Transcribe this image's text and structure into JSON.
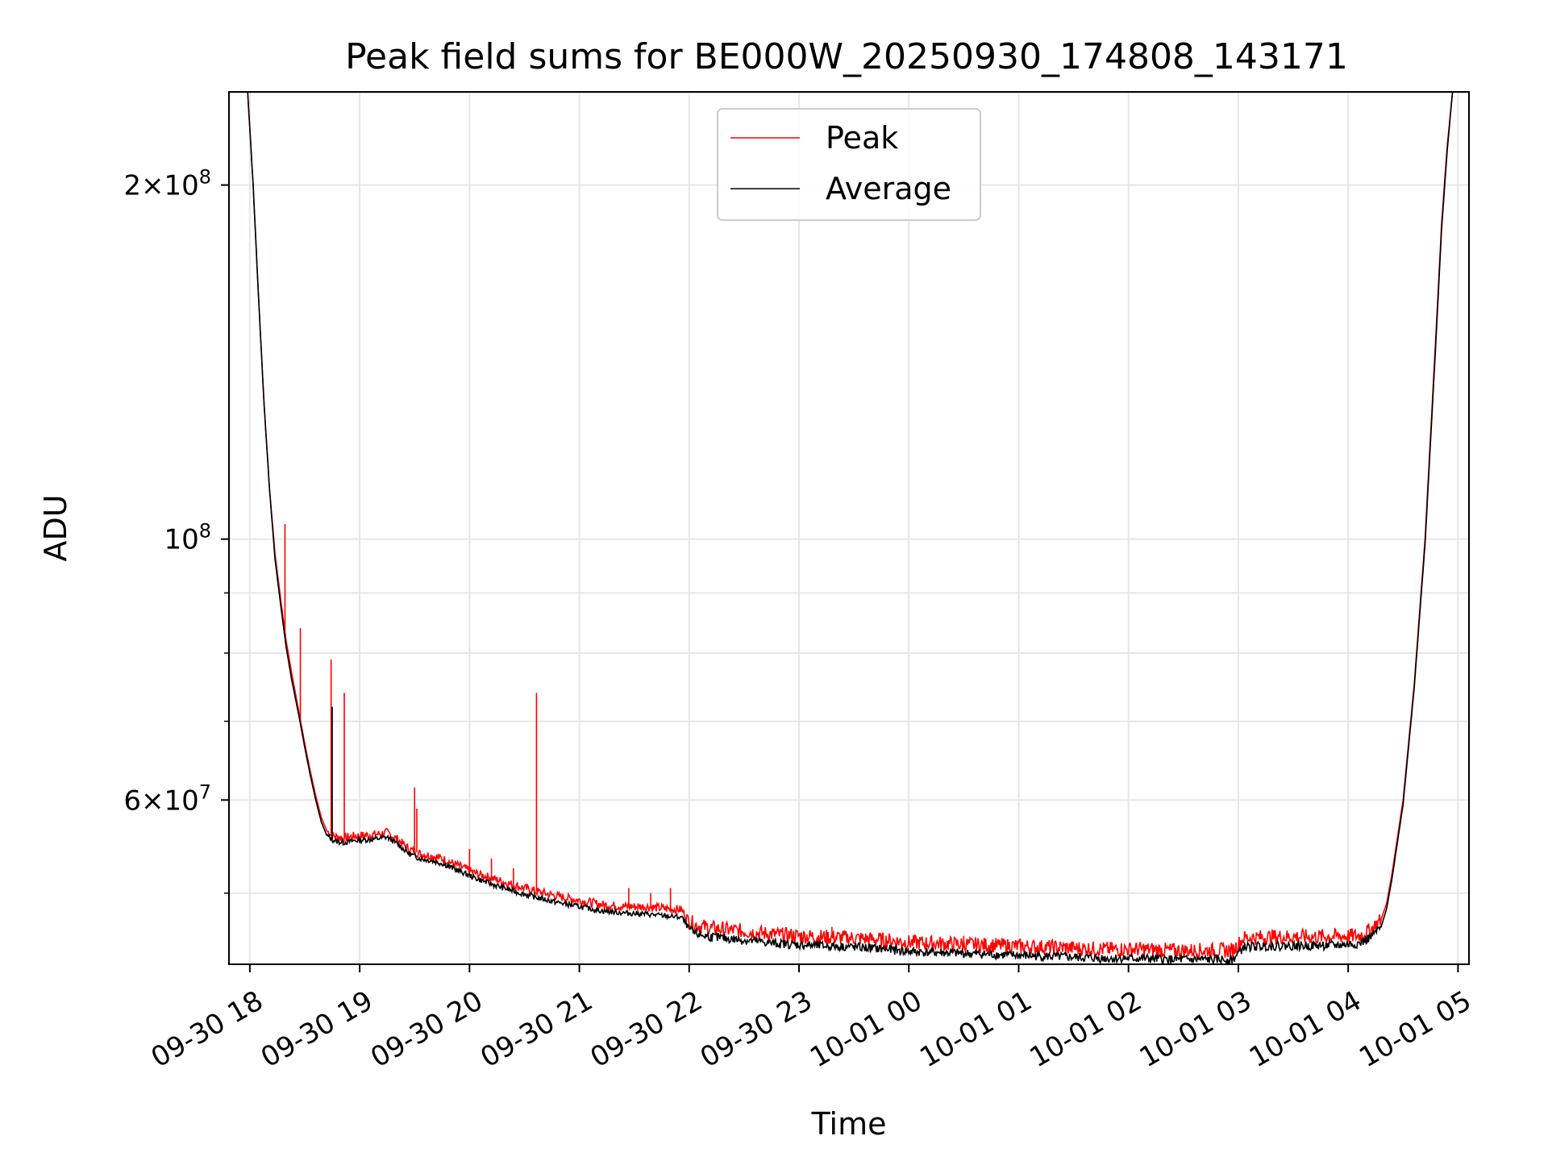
{
  "chart_data": {
    "type": "line",
    "title": "Peak field sums for BE000W_20250930_174808_143171",
    "xlabel": "Time",
    "ylabel": "ADU",
    "yscale": "log",
    "grid": true,
    "legend_position": "upper-center",
    "x_unit": "hours since 09-30 17:48",
    "x_range": [
      -0.19,
      11.1
    ],
    "ylim": [
      43500000,
      240000000
    ],
    "x_ticks": [
      {
        "label": "09-30 18",
        "value": 0
      },
      {
        "label": "09-30 19",
        "value": 1
      },
      {
        "label": "09-30 20",
        "value": 2
      },
      {
        "label": "09-30 21",
        "value": 3
      },
      {
        "label": "09-30 22",
        "value": 4
      },
      {
        "label": "09-30 23",
        "value": 5
      },
      {
        "label": "10-01 00",
        "value": 6
      },
      {
        "label": "10-01 01",
        "value": 7
      },
      {
        "label": "10-01 02",
        "value": 8
      },
      {
        "label": "10-01 03",
        "value": 9
      },
      {
        "label": "10-01 04",
        "value": 10
      },
      {
        "label": "10-01 05",
        "value": 11
      }
    ],
    "y_ticks_major": [
      {
        "value": 200000000,
        "mant": "2",
        "exp": "8"
      },
      {
        "value": 100000000,
        "mant": "",
        "exp": "8"
      },
      {
        "value": 60000000,
        "mant": "6",
        "exp": "7"
      }
    ],
    "y_ticks_minor": [
      50000000,
      70000000,
      80000000,
      90000000
    ],
    "series": [
      {
        "name": "Peak",
        "color": "#ff0000",
        "x": [
          -0.19,
          -0.02,
          0.03,
          0.08,
          0.13,
          0.18,
          0.23,
          0.28,
          0.33,
          0.38,
          0.45,
          0.5,
          0.55,
          0.6,
          0.65,
          0.7,
          0.75,
          0.8,
          0.85,
          0.9,
          0.95,
          1.05,
          1.15,
          1.25,
          1.35,
          1.45,
          1.55,
          1.65,
          1.75,
          1.85,
          1.95,
          2.05,
          2.2,
          2.4,
          2.6,
          2.8,
          3.0,
          3.2,
          3.4,
          3.6,
          3.8,
          3.93,
          4.0,
          4.05,
          4.2,
          4.5,
          4.8,
          5.0,
          5.2,
          5.5,
          5.8,
          6.0,
          6.3,
          6.6,
          6.9,
          7.2,
          7.5,
          7.8,
          8.1,
          8.4,
          8.7,
          8.95,
          9.05,
          9.3,
          9.6,
          9.9,
          10.1,
          10.2,
          10.3,
          10.35,
          10.4,
          10.5,
          10.6,
          10.7,
          10.8,
          10.85,
          10.9,
          10.95,
          11.1
        ],
        "y": [
          240000000,
          240000000,
          200000000,
          160000000,
          130000000,
          110000000,
          97000000,
          89000000,
          82000000,
          77000000,
          71000000,
          67000000,
          63500000,
          60500000,
          58000000,
          56500000,
          56000000,
          55800000,
          55700000,
          55800000,
          55900000,
          56000000,
          56100000,
          56300000,
          55500000,
          54500000,
          54000000,
          53800000,
          53500000,
          53000000,
          52500000,
          52000000,
          51500000,
          50800000,
          50200000,
          49700000,
          49300000,
          48900000,
          48700000,
          48700000,
          48500000,
          48400000,
          47400000,
          47000000,
          46700000,
          46400000,
          46100000,
          46000000,
          45900000,
          45800000,
          45600000,
          45400000,
          45300000,
          45200000,
          45100000,
          45000000,
          44900000,
          44800000,
          44800000,
          44700000,
          44700000,
          44700000,
          45800000,
          45900000,
          45900000,
          45950000,
          46000000,
          46500000,
          47500000,
          49000000,
          52000000,
          60000000,
          75000000,
          100000000,
          150000000,
          185000000,
          215000000,
          240000000,
          240000000
        ],
        "spikes": [
          [
            0.32,
            103000000
          ],
          [
            0.46,
            84000000
          ],
          [
            0.74,
            79000000
          ],
          [
            0.86,
            74000000
          ],
          [
            1.5,
            61500000
          ],
          [
            1.52,
            59000000
          ],
          [
            2.61,
            74000000
          ],
          [
            3.45,
            50500000
          ],
          [
            3.65,
            50000000
          ],
          [
            3.83,
            50500000
          ],
          [
            2.0,
            54500000
          ],
          [
            2.2,
            53500000
          ],
          [
            2.4,
            52500000
          ],
          [
            5.3,
            46800000
          ],
          [
            6.5,
            46000000
          ]
        ],
        "noise": 0.025,
        "noise_seed": 7
      },
      {
        "name": "Average",
        "color": "#000000",
        "x": [
          -0.19,
          -0.02,
          0.03,
          0.08,
          0.13,
          0.18,
          0.23,
          0.28,
          0.33,
          0.38,
          0.45,
          0.5,
          0.55,
          0.6,
          0.65,
          0.7,
          0.75,
          0.8,
          0.85,
          0.9,
          0.95,
          1.05,
          1.15,
          1.25,
          1.35,
          1.45,
          1.55,
          1.65,
          1.75,
          1.85,
          1.95,
          2.05,
          2.2,
          2.4,
          2.6,
          2.8,
          3.0,
          3.2,
          3.4,
          3.6,
          3.8,
          3.93,
          4.0,
          4.05,
          4.2,
          4.5,
          4.8,
          5.0,
          5.2,
          5.5,
          5.8,
          6.0,
          6.3,
          6.6,
          6.9,
          7.2,
          7.5,
          7.8,
          8.1,
          8.4,
          8.7,
          8.95,
          9.05,
          9.3,
          9.6,
          9.9,
          10.1,
          10.2,
          10.3,
          10.35,
          10.4,
          10.5,
          10.6,
          10.7,
          10.8,
          10.85,
          10.9,
          10.95,
          11.1
        ],
        "y": [
          240000000,
          240000000,
          200000000,
          160000000,
          130000000,
          110000000,
          96000000,
          88000000,
          81000000,
          76000000,
          70500000,
          66500000,
          63000000,
          60000000,
          57500000,
          56000000,
          55500000,
          55300000,
          55200000,
          55300000,
          55400000,
          55500000,
          55600000,
          55800000,
          55000000,
          54000000,
          53500000,
          53300000,
          53000000,
          52500000,
          52000000,
          51500000,
          50900000,
          50200000,
          49600000,
          49100000,
          48700000,
          48300000,
          48100000,
          48000000,
          47800000,
          47700000,
          46600000,
          46200000,
          45900000,
          45600000,
          45300000,
          45200000,
          45100000,
          45000000,
          44800000,
          44600000,
          44500000,
          44400000,
          44300000,
          44200000,
          44100000,
          44000000,
          44000000,
          43900000,
          43900000,
          43900000,
          45000000,
          45100000,
          45100000,
          45150000,
          45300000,
          45800000,
          46800000,
          48500000,
          51500000,
          59500000,
          74500000,
          99000000,
          148000000,
          183000000,
          213000000,
          240000000,
          240000000
        ],
        "spikes": [
          [
            0.75,
            72000000
          ]
        ],
        "noise": 0.015,
        "noise_seed": 13
      }
    ]
  }
}
